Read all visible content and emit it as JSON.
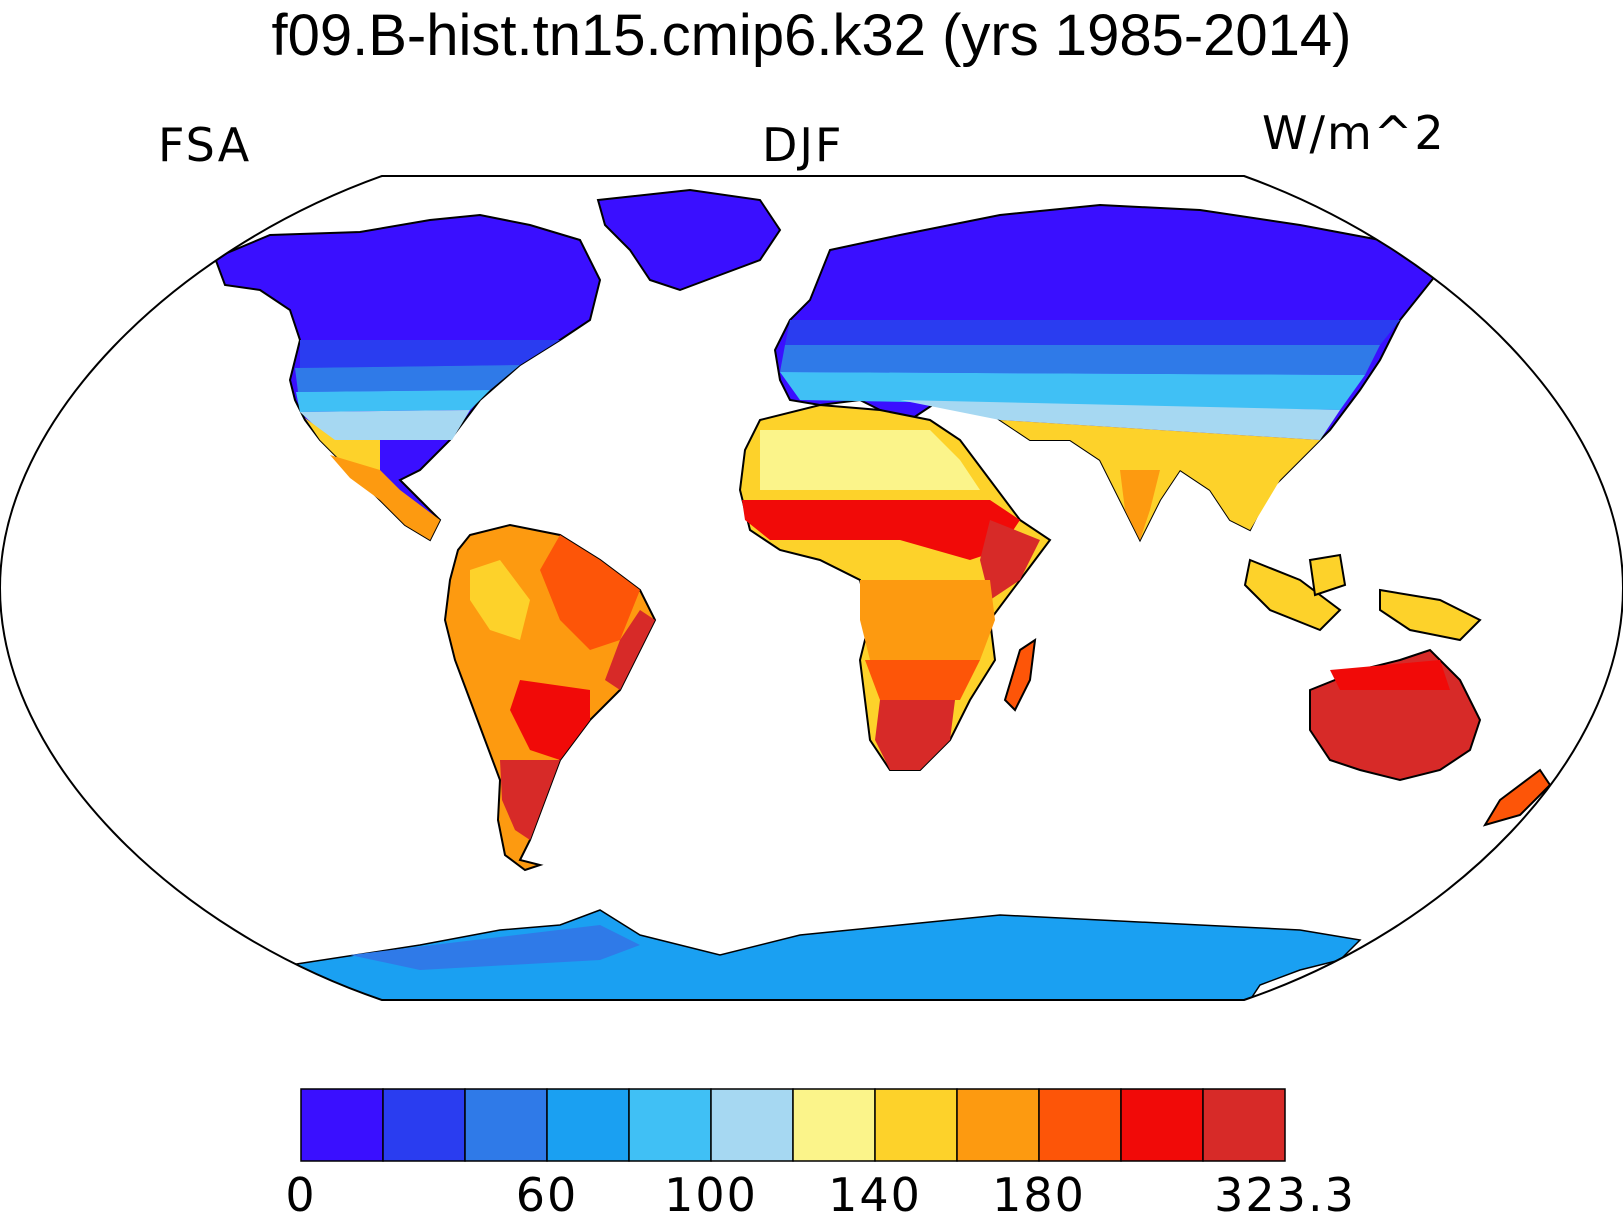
{
  "title": "f09.B-hist.tn15.cmip6.k32 (yrs 1985-2014)",
  "left_label": "FSA",
  "center_label": "DJF",
  "right_label": "W/m^2",
  "colors": [
    "#3a0fff",
    "#2a3df0",
    "#2f7ae8",
    "#1aa0f2",
    "#40c0f5",
    "#a6d8f2",
    "#fbf48a",
    "#fdd22a",
    "#fd9a10",
    "#fd5508",
    "#f10a08",
    "#d72a28"
  ],
  "colorbar_tick_labels": [
    {
      "text": "0",
      "edge": 0
    },
    {
      "text": "60",
      "edge": 3
    },
    {
      "text": "100",
      "edge": 5
    },
    {
      "text": "140",
      "edge": 7
    },
    {
      "text": "180",
      "edge": 9
    },
    {
      "text": "323.3",
      "edge": 12
    }
  ]
}
